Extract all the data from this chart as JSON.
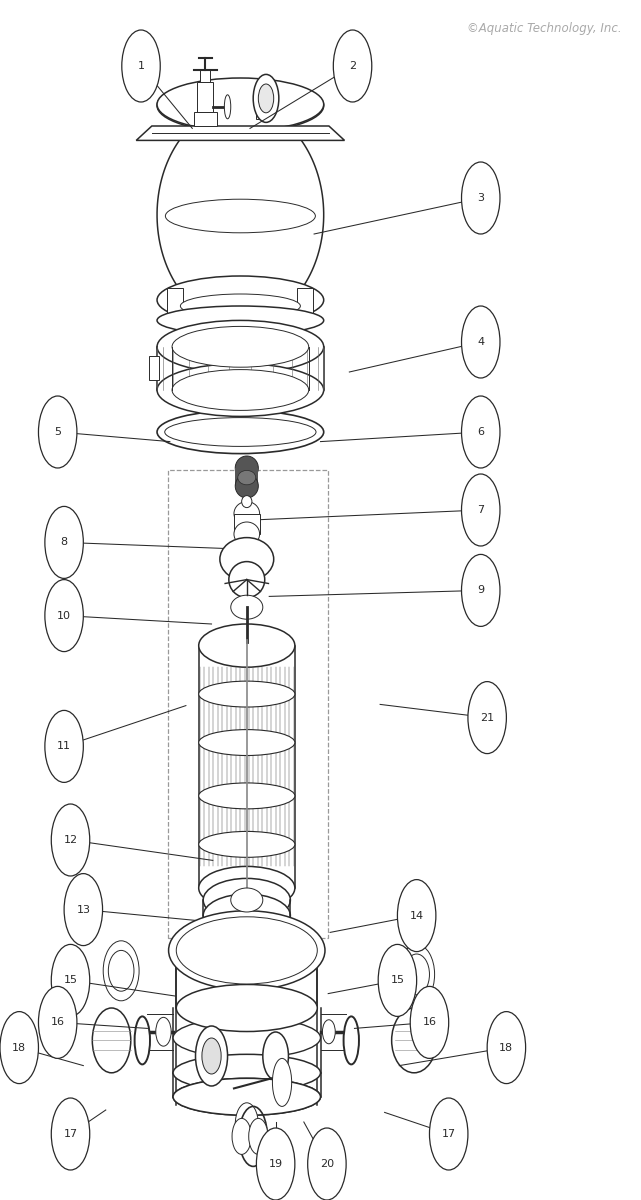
{
  "title": "©Aquatic Technology, Inc.",
  "bg_color": "#ffffff",
  "line_color": "#2a2a2a",
  "callouts": {
    "1": [
      0.22,
      0.945,
      0.3,
      0.893
    ],
    "2": [
      0.55,
      0.945,
      0.39,
      0.893
    ],
    "3": [
      0.75,
      0.835,
      0.49,
      0.805
    ],
    "4": [
      0.75,
      0.715,
      0.545,
      0.69
    ],
    "5": [
      0.09,
      0.64,
      0.265,
      0.632
    ],
    "6": [
      0.75,
      0.64,
      0.5,
      0.632
    ],
    "7": [
      0.75,
      0.575,
      0.408,
      0.567
    ],
    "8": [
      0.1,
      0.548,
      0.348,
      0.543
    ],
    "9": [
      0.75,
      0.508,
      0.42,
      0.503
    ],
    "10": [
      0.1,
      0.487,
      0.33,
      0.48
    ],
    "11": [
      0.1,
      0.378,
      0.29,
      0.412
    ],
    "12": [
      0.11,
      0.3,
      0.332,
      0.283
    ],
    "13": [
      0.13,
      0.242,
      0.305,
      0.233
    ],
    "14": [
      0.65,
      0.237,
      0.515,
      0.223
    ],
    "15l": [
      0.11,
      0.183,
      0.273,
      0.17
    ],
    "15r": [
      0.62,
      0.183,
      0.512,
      0.172
    ],
    "16l": [
      0.09,
      0.148,
      0.23,
      0.143
    ],
    "16r": [
      0.67,
      0.148,
      0.553,
      0.143
    ],
    "17l": [
      0.11,
      0.055,
      0.165,
      0.075
    ],
    "17r": [
      0.7,
      0.055,
      0.6,
      0.073
    ],
    "18l": [
      0.03,
      0.127,
      0.13,
      0.112
    ],
    "18r": [
      0.79,
      0.127,
      0.623,
      0.112
    ],
    "19": [
      0.43,
      0.03,
      0.43,
      0.065
    ],
    "20": [
      0.51,
      0.03,
      0.474,
      0.065
    ],
    "21": [
      0.76,
      0.402,
      0.593,
      0.413
    ]
  }
}
